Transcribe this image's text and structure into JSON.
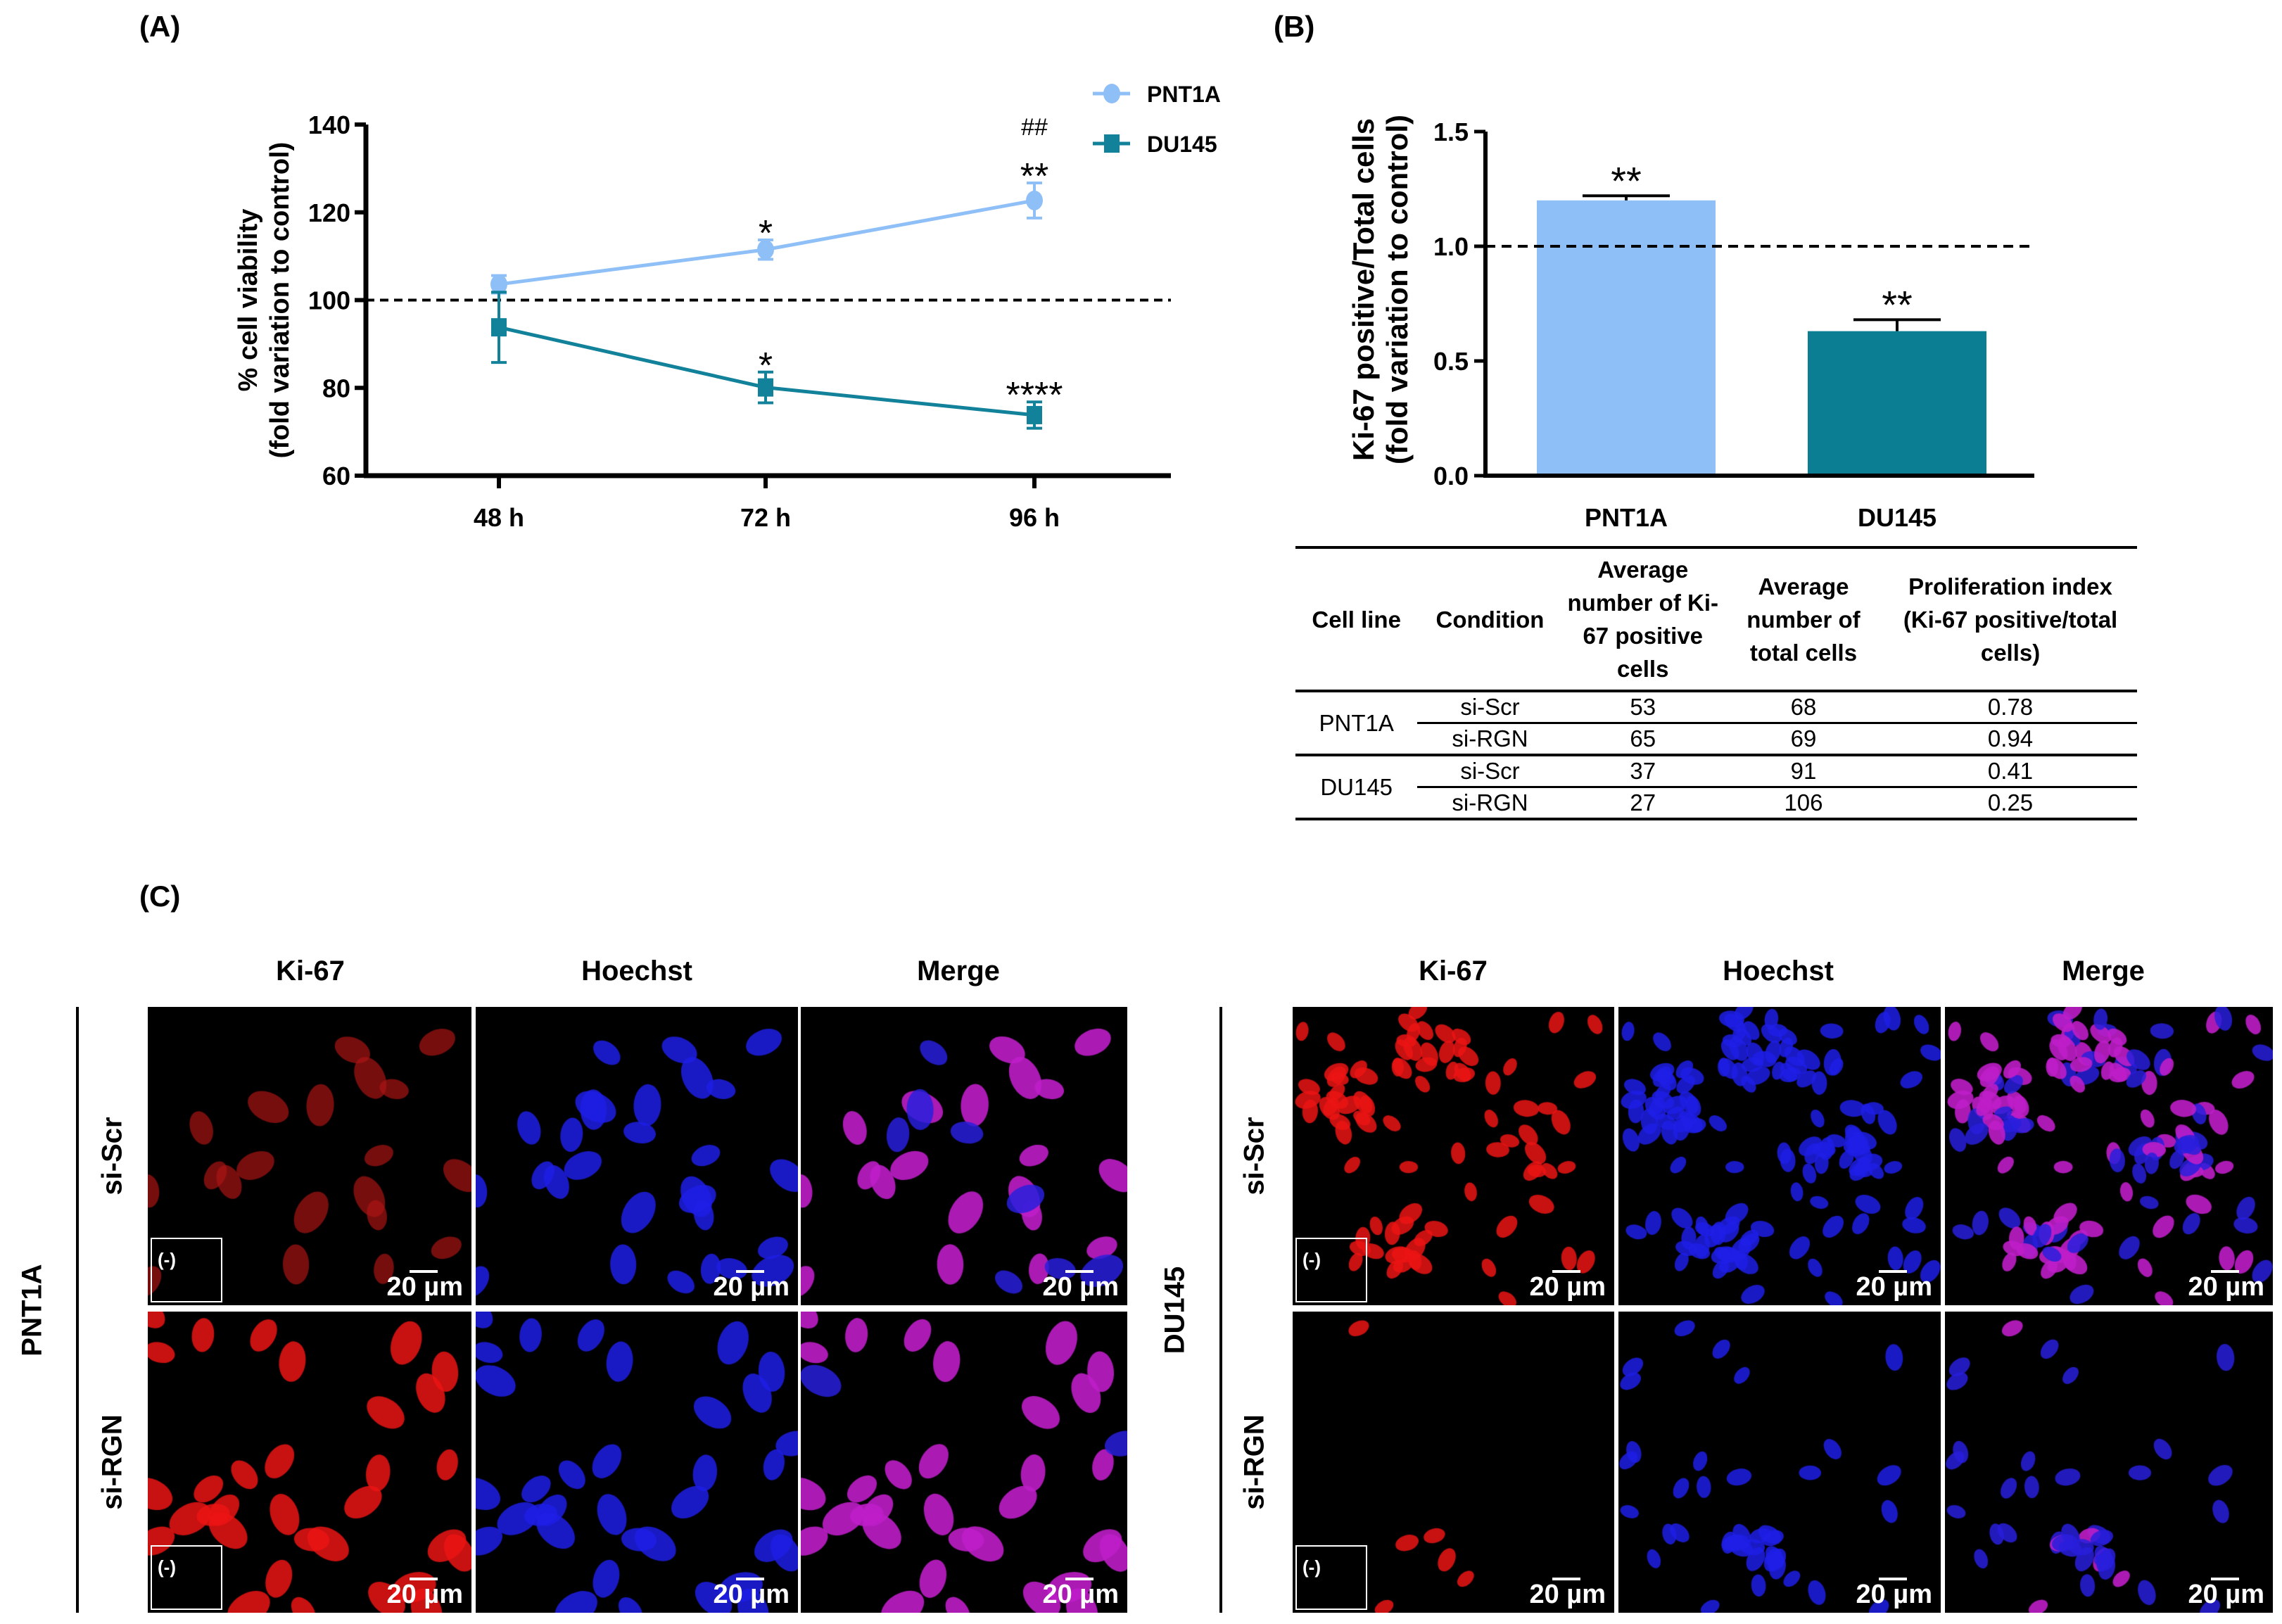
{
  "panel_labels": {
    "a": "(A)",
    "b": "(B)",
    "c": "(C)"
  },
  "chart_data": [
    {
      "type": "line",
      "ylabel": "% cell viability",
      "ylabel2": "(fold variation to control)",
      "categories": [
        "48 h",
        "72 h",
        "96 h"
      ],
      "ylim": [
        60,
        140
      ],
      "yticks": [
        "60",
        "80",
        "100",
        "120",
        "140"
      ],
      "reference_line": 100,
      "legend_position": "top-right",
      "series": [
        {
          "name": "PNT1A",
          "color": "#8fbff7",
          "marker": "circle",
          "values": [
            103.6,
            111.5,
            122.7
          ],
          "errors": [
            2.0,
            2.2,
            4.0
          ],
          "annotations": [
            "",
            "*",
            "**"
          ],
          "annotations2": [
            "",
            "",
            "##"
          ]
        },
        {
          "name": "DU145",
          "color": "#12819a",
          "marker": "square",
          "values": [
            93.8,
            80.1,
            73.8
          ],
          "errors": [
            8.0,
            3.5,
            3.0
          ],
          "annotations": [
            "",
            "*",
            "****"
          ],
          "annotations2": [
            "",
            "",
            ""
          ]
        }
      ]
    },
    {
      "type": "bar",
      "ylabel": "Ki-67 positive/Total cells",
      "ylabel2": "(fold variation to control)",
      "categories": [
        "PNT1A",
        "DU145"
      ],
      "values": [
        1.2,
        0.63
      ],
      "errors": [
        0.02,
        0.05
      ],
      "colors": [
        "#8fbff7",
        "#0b7e93"
      ],
      "annotations": [
        "**",
        "**"
      ],
      "ylim": [
        0,
        1.5
      ],
      "yticks": [
        "0.0",
        "0.5",
        "1.0",
        "1.5"
      ],
      "reference_line": 1.0
    }
  ],
  "table": {
    "headers": [
      "Cell line",
      "Condition",
      "Average number of Ki-67 positive cells",
      "Average number of total cells",
      "Proliferation index (Ki-67 positive/total cells)"
    ],
    "groups": [
      {
        "cell_line": "PNT1A",
        "rows": [
          [
            "si-Scr",
            "53",
            "68",
            "0.78"
          ],
          [
            "si-RGN",
            "65",
            "69",
            "0.94"
          ]
        ]
      },
      {
        "cell_line": "DU145",
        "rows": [
          [
            "si-Scr",
            "37",
            "91",
            "0.41"
          ],
          [
            "si-RGN",
            "27",
            "106",
            "0.25"
          ]
        ]
      }
    ]
  },
  "microscopy": {
    "columns": [
      "Ki-67",
      "Hoechst",
      "Merge"
    ],
    "cell_lines": [
      "PNT1A",
      "DU145"
    ],
    "conditions": [
      "si-Scr",
      "si-RGN"
    ],
    "scale_bar": "20 µm",
    "inset_label": "(-)"
  }
}
